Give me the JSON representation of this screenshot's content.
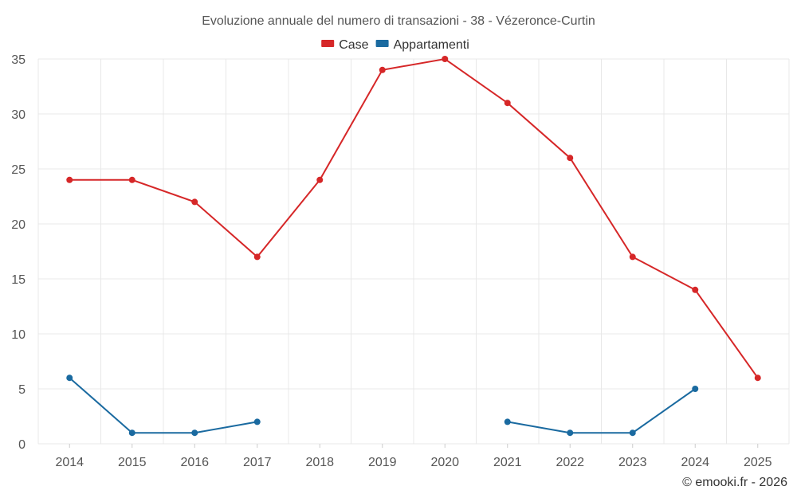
{
  "chart_data": {
    "type": "line",
    "title": "Evoluzione annuale del numero di transazioni - 38 - Vézeronce-Curtin",
    "xlabel": "",
    "ylabel": "",
    "categories": [
      "2014",
      "2015",
      "2016",
      "2017",
      "2018",
      "2019",
      "2020",
      "2021",
      "2022",
      "2023",
      "2024",
      "2025"
    ],
    "ylim": [
      0,
      35
    ],
    "yticks": [
      0,
      5,
      10,
      15,
      20,
      25,
      30,
      35
    ],
    "grid": true,
    "legend_position": "top-center",
    "series": [
      {
        "name": "Case",
        "color": "#d62728",
        "values": [
          24,
          24,
          22,
          17,
          24,
          34,
          35,
          31,
          26,
          17,
          14,
          6
        ]
      },
      {
        "name": "Appartamenti",
        "color": "#1a6aa0",
        "values": [
          6,
          1,
          1,
          2,
          null,
          null,
          null,
          2,
          1,
          1,
          5,
          null
        ]
      }
    ]
  },
  "credit": "© emooki.fr - 2026"
}
